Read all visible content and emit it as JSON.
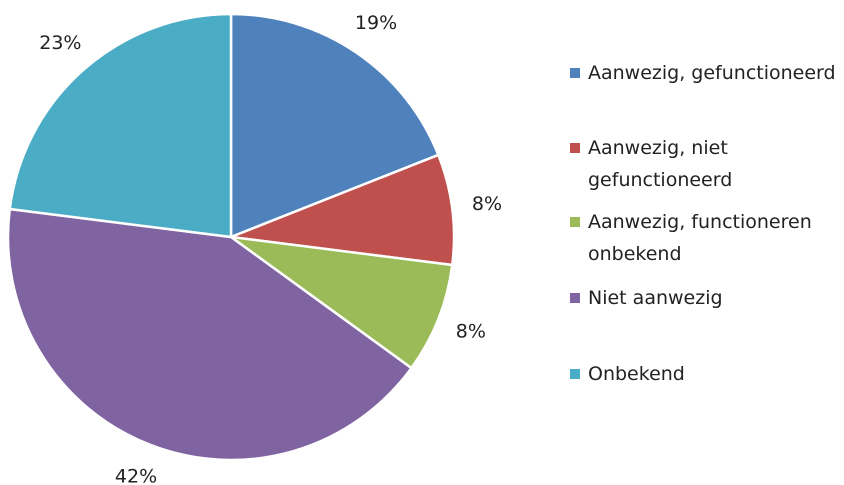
{
  "chart_data": {
    "type": "pie",
    "categories": [
      "Aanwezig, gefunctioneerd",
      "Aanwezig, niet gefunctioneerd",
      "Aanwezig, functioneren onbekend",
      "Niet aanwezig",
      "Onbekend"
    ],
    "values": [
      19,
      8,
      8,
      42,
      23
    ],
    "value_labels": [
      "19%",
      "8%",
      "8%",
      "42%",
      "23%"
    ],
    "colors": [
      "#4f81bd",
      "#c0504d",
      "#9bbb59",
      "#8064a2",
      "#4bacc6"
    ],
    "legend": "right"
  }
}
